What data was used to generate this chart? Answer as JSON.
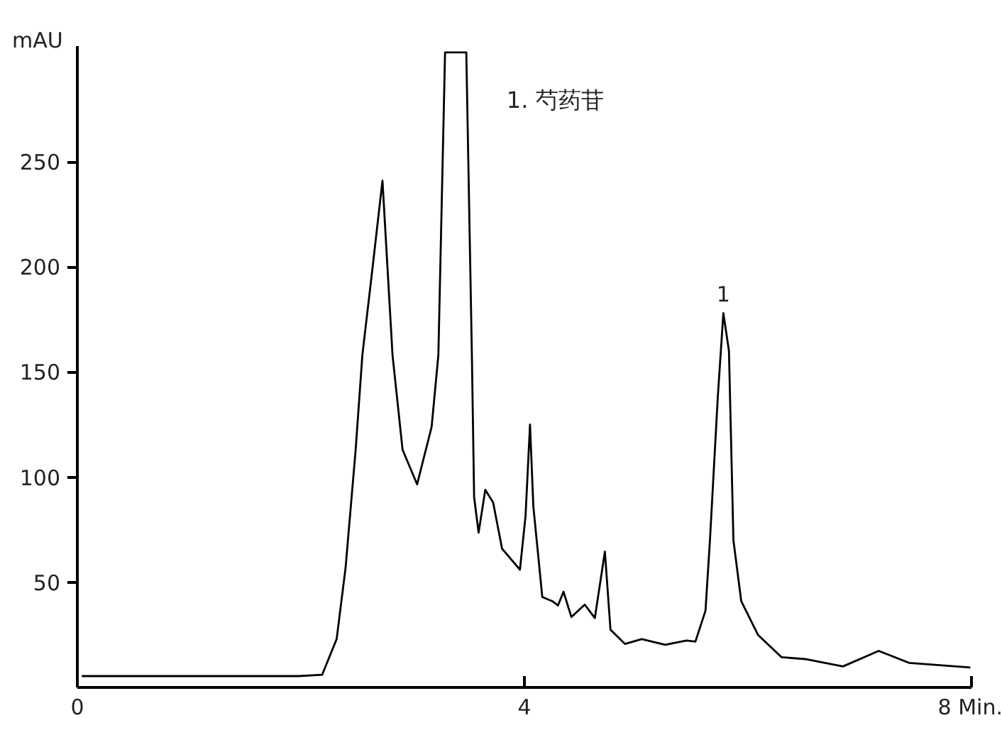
{
  "chart_data": {
    "type": "line",
    "ylabel": "mAU",
    "annotations": [
      {
        "text": "1",
        "x": 5.78,
        "y": 178
      },
      "1. 芍药苷"
    ],
    "xlim": [
      0,
      8
    ],
    "xticks": [
      0,
      4,
      {
        "value": 8,
        "label": "8 Min."
      }
    ],
    "ylim": [
      0,
      305
    ],
    "yticks": [
      50,
      100,
      150,
      200,
      250
    ],
    "grid": false,
    "marker": "none",
    "line_style": "solid",
    "series": [
      {
        "color": "#000000",
        "x": [
          0.04,
          1.98,
          2.19,
          2.32,
          2.4,
          2.49,
          2.55,
          2.64,
          2.73,
          2.82,
          2.91,
          3.04,
          3.17,
          3.23,
          3.29,
          3.48,
          3.53,
          3.55,
          3.59,
          3.65,
          3.72,
          3.8,
          3.96,
          4.01,
          4.05,
          4.08,
          4.16,
          4.25,
          4.3,
          4.35,
          4.42,
          4.54,
          4.63,
          4.72,
          4.77,
          4.9,
          5.05,
          5.26,
          5.45,
          5.53,
          5.62,
          5.66,
          5.73,
          5.78,
          5.83,
          5.87,
          5.94,
          6.09,
          6.3,
          6.51,
          6.85,
          7.17,
          7.44,
          7.99
        ],
        "values": [
          5.4,
          5.4,
          6,
          23,
          57,
          113,
          158,
          199,
          241,
          158,
          113,
          96.6,
          124,
          158,
          302,
          302,
          158,
          90.5,
          73.6,
          94,
          88,
          66,
          56,
          81.5,
          125,
          86,
          43,
          41,
          39,
          45.5,
          33.5,
          39.4,
          33,
          64.6,
          27.5,
          20.7,
          23,
          20.3,
          22.3,
          21.8,
          36.5,
          70,
          138,
          178,
          160,
          70,
          41,
          25,
          14.4,
          13.5,
          10,
          17.4,
          11.7,
          9.5
        ]
      }
    ]
  }
}
